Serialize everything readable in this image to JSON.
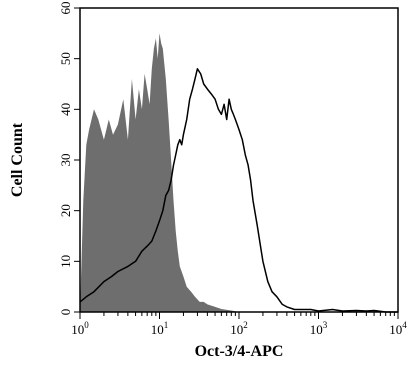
{
  "chart_data": {
    "type": "area",
    "xlabel": "Oct-3/4-APC",
    "ylabel": "Cell Count",
    "xscale": "log",
    "xlim": [
      1,
      10000
    ],
    "ylim": [
      0,
      60
    ],
    "grid": false,
    "legend": "none",
    "x_ticks": [
      {
        "base": "10",
        "exp": "0",
        "value": 1
      },
      {
        "base": "10",
        "exp": "1",
        "value": 10
      },
      {
        "base": "10",
        "exp": "2",
        "value": 100
      },
      {
        "base": "10",
        "exp": "3",
        "value": 1000
      },
      {
        "base": "10",
        "exp": "4",
        "value": 10000
      }
    ],
    "y_ticks": [
      "0",
      "10",
      "20",
      "30",
      "40",
      "50",
      "60"
    ],
    "series": [
      {
        "style": "filled",
        "color": "#6e6e6e",
        "x": [
          1.0,
          1.1,
          1.2,
          1.3,
          1.5,
          1.7,
          2.0,
          2.3,
          2.6,
          3.0,
          3.5,
          4.0,
          4.5,
          5.0,
          5.5,
          6.0,
          6.5,
          7.0,
          7.5,
          8.0,
          8.5,
          9.0,
          9.5,
          10.0,
          10.5,
          11.0,
          11.5,
          12.0,
          13.0,
          14.0,
          15.0,
          16.0,
          17.0,
          18.0,
          20.0,
          22.0,
          25.0,
          28.0,
          32.0,
          36.0,
          40.0,
          50.0,
          60.0,
          80.0,
          100.0
        ],
        "y": [
          0,
          22,
          33,
          36,
          40,
          38,
          34,
          38,
          35,
          37,
          42,
          34,
          46,
          38,
          44,
          40,
          47,
          44,
          41,
          48,
          52,
          54,
          50,
          55,
          53,
          52,
          49,
          46,
          38,
          30,
          22,
          16,
          12,
          9,
          7,
          5,
          4,
          3,
          2,
          2,
          1.5,
          1,
          0.6,
          0.3,
          0
        ]
      },
      {
        "style": "line",
        "color": "#000000",
        "x": [
          1.0,
          1.2,
          1.5,
          2.0,
          2.5,
          3.0,
          4.0,
          5.0,
          6.0,
          7.0,
          8.0,
          9.0,
          10.0,
          11.0,
          12.0,
          13.0,
          14.0,
          15.0,
          16.0,
          17.0,
          18.0,
          19.0,
          20.0,
          22.0,
          24.0,
          26.0,
          28.0,
          30.0,
          33.0,
          36.0,
          40.0,
          45.0,
          50.0,
          55.0,
          60.0,
          65.0,
          70.0,
          75.0,
          80.0,
          85.0,
          90.0,
          100.0,
          110.0,
          120.0,
          130.0,
          140.0,
          150.0,
          170.0,
          200.0,
          230.0,
          260.0,
          300.0,
          350.0,
          400.0,
          500.0,
          600.0,
          800.0,
          1000.0,
          1500.0,
          2000.0,
          3000.0,
          4000.0,
          5000.0,
          7000.0,
          10000.0
        ],
        "y": [
          2,
          3,
          4,
          6,
          7,
          8,
          9,
          10,
          12,
          13,
          14,
          16,
          18,
          20,
          23,
          24,
          26,
          29,
          31,
          33,
          34,
          33,
          35,
          38,
          42,
          44,
          46,
          48,
          47,
          45,
          44,
          43,
          42,
          40,
          39,
          41,
          38,
          42,
          40,
          39,
          38,
          36,
          34,
          31,
          29,
          26,
          22,
          17,
          10,
          6,
          4,
          3,
          1.5,
          1,
          0.5,
          0.5,
          0.5,
          0.2,
          0.5,
          0.2,
          0.3,
          0.2,
          0.3,
          0,
          0
        ]
      }
    ]
  }
}
